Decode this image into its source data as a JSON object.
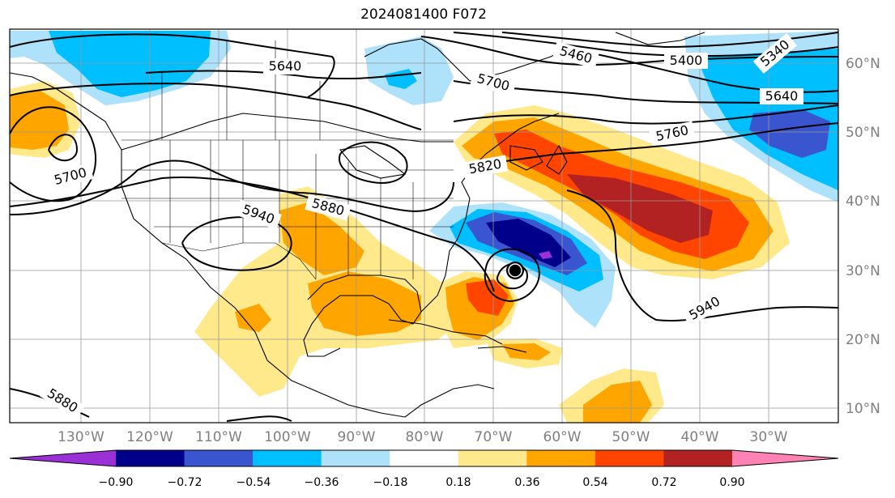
{
  "title": "2024081400 F072",
  "map": {
    "projection": "PlateCarree",
    "lon_range": [
      -142,
      -24
    ],
    "lat_range": [
      7,
      65
    ],
    "grid": true,
    "lon_labels": [
      "130°W",
      "120°W",
      "110°W",
      "100°W",
      "90°W",
      "80°W",
      "70°W",
      "60°W",
      "50°W",
      "40°W",
      "30°W"
    ],
    "lat_labels": [
      "60°N",
      "50°N",
      "40°N",
      "30°N",
      "20°N",
      "10°N"
    ],
    "colors": {
      "land_outline": "#000000",
      "gridline": "#999999",
      "tick_label": "#7f7f7f"
    },
    "storm_marker": {
      "label": "",
      "lon": -70,
      "lat": 30
    }
  },
  "contour_labels": [
    "5640",
    "5700",
    "5460",
    "5400",
    "5340",
    "5640",
    "5760",
    "5820",
    "5880",
    "5940",
    "5700",
    "5940",
    "5880"
  ],
  "colorbar": {
    "tick_labels": [
      "−0.90",
      "−0.72",
      "−0.54",
      "−0.36",
      "−0.18",
      "0.18",
      "0.36",
      "0.54",
      "0.72",
      "0.90"
    ],
    "colors": [
      "#9b30d6",
      "#00008b",
      "#3a55d0",
      "#00bfff",
      "#aee1fa",
      "#ffffff",
      "#ffe98a",
      "#ffa500",
      "#ff4500",
      "#b22222",
      "#ff82b4"
    ]
  },
  "chart_data": {
    "type": "heatmap",
    "title": "2024081400 F072",
    "xlabel": "",
    "ylabel": "",
    "shading_levels": [
      -0.9,
      -0.72,
      -0.54,
      -0.36,
      -0.18,
      0.18,
      0.36,
      0.54,
      0.72,
      0.9
    ],
    "height_contours": [
      5340,
      5400,
      5460,
      5640,
      5700,
      5760,
      5820,
      5880,
      5940
    ]
  }
}
